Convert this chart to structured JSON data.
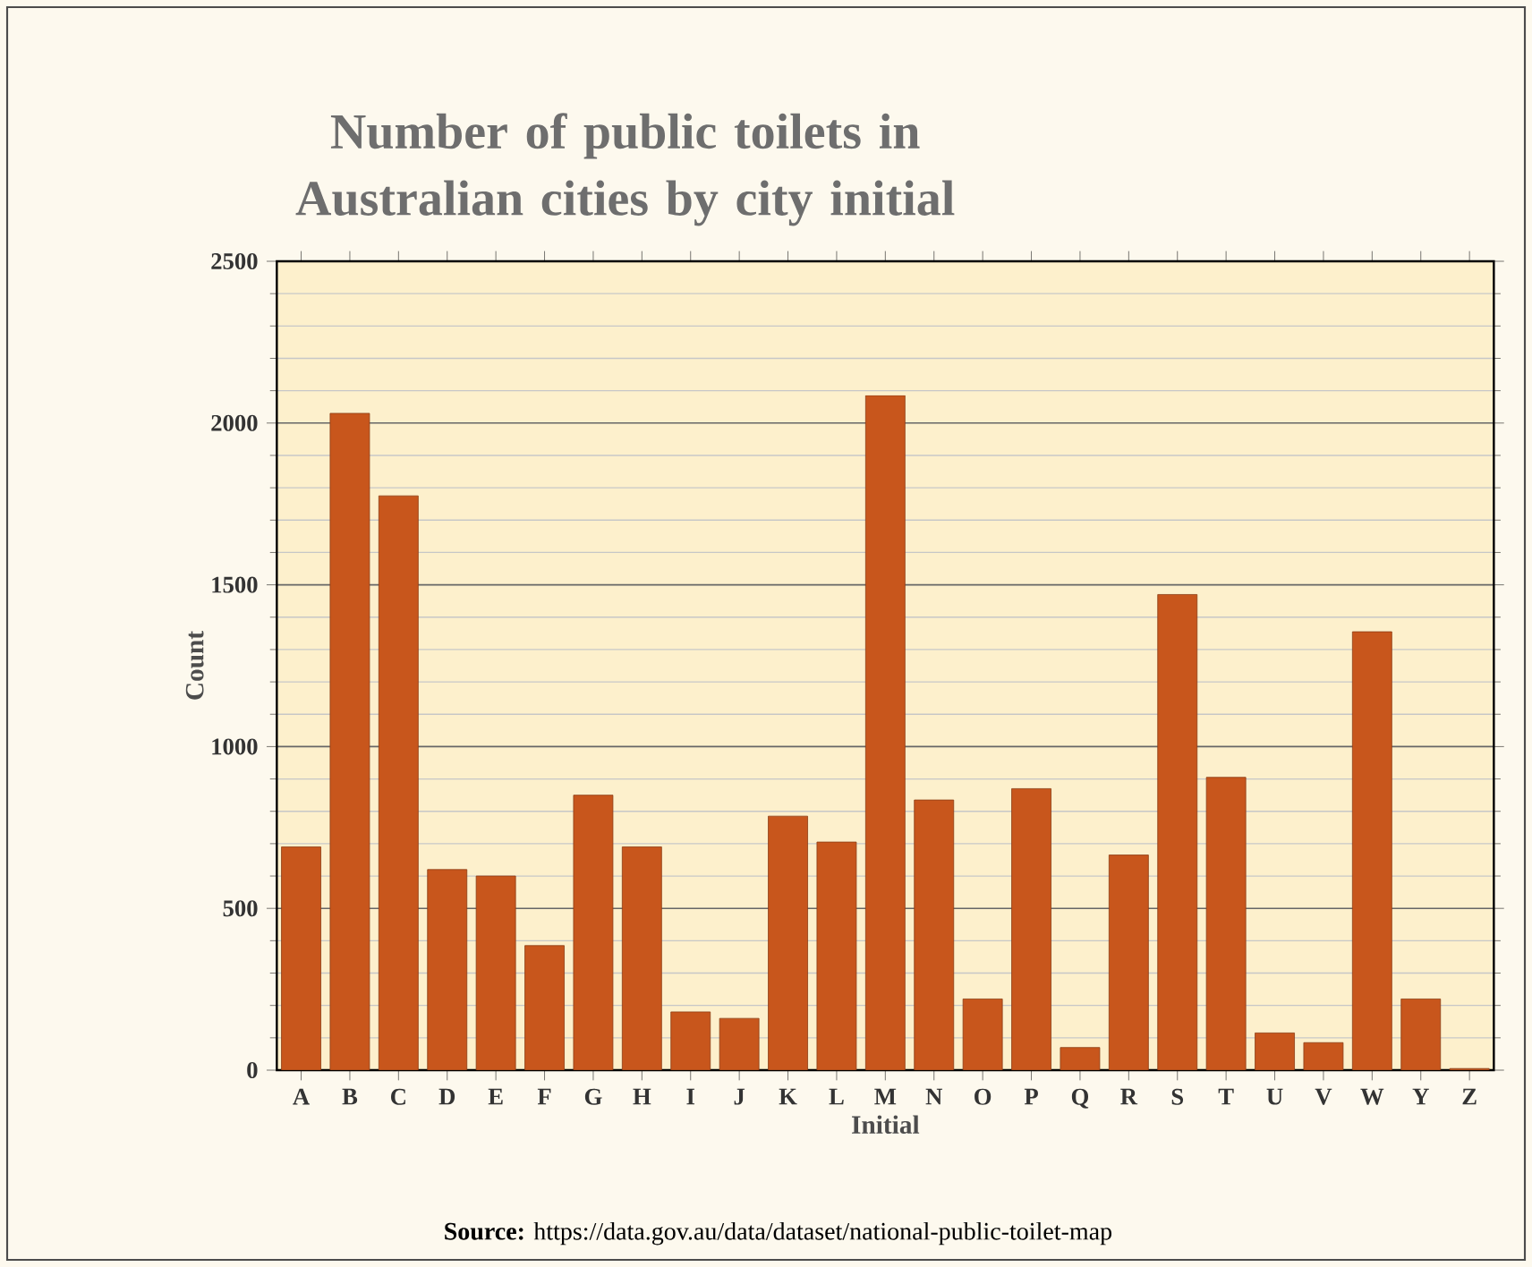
{
  "chart_data": {
    "type": "bar",
    "title": "Number of public toilets in Australian cities by city initial",
    "xlabel": "Initial",
    "ylabel": "Count",
    "categories": [
      "A",
      "B",
      "C",
      "D",
      "E",
      "F",
      "G",
      "H",
      "I",
      "J",
      "K",
      "L",
      "M",
      "N",
      "O",
      "P",
      "Q",
      "R",
      "S",
      "T",
      "U",
      "V",
      "W",
      "Y",
      "Z"
    ],
    "values": [
      690,
      2030,
      1775,
      620,
      600,
      385,
      850,
      690,
      180,
      160,
      785,
      705,
      2085,
      835,
      220,
      870,
      70,
      665,
      1470,
      905,
      115,
      85,
      1355,
      220,
      5
    ],
    "color": "#c8561c",
    "ylim": [
      0,
      2500
    ],
    "yticks": [
      0,
      500,
      1000,
      1500,
      2000,
      2500
    ],
    "grid": "y",
    "annotations": [
      "**Source:** https://data.gov.au/data/dataset/national-public-toilet-map"
    ]
  }
}
